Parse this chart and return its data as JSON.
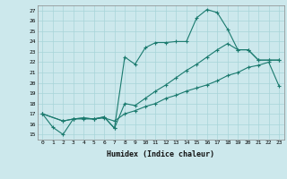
{
  "xlabel": "Humidex (Indice chaleur)",
  "ylabel": "",
  "bg_color": "#cce8ec",
  "grid_color": "#a8d4d8",
  "line_color": "#1a7a6e",
  "xlim": [
    -0.5,
    23.5
  ],
  "ylim": [
    14.5,
    27.5
  ],
  "xticks": [
    0,
    1,
    2,
    3,
    4,
    5,
    6,
    7,
    8,
    9,
    10,
    11,
    12,
    13,
    14,
    15,
    16,
    17,
    18,
    19,
    20,
    21,
    22,
    23
  ],
  "yticks": [
    15,
    16,
    17,
    18,
    19,
    20,
    21,
    22,
    23,
    24,
    25,
    26,
    27
  ],
  "series": [
    {
      "x": [
        0,
        1,
        2,
        3,
        4,
        5,
        6,
        7,
        8,
        9,
        10,
        11,
        12,
        13,
        14,
        15,
        16,
        17,
        18,
        19,
        20,
        21,
        22,
        23
      ],
      "y": [
        17,
        15.7,
        15.0,
        16.5,
        16.5,
        16.5,
        16.6,
        16.3,
        17.0,
        17.3,
        17.7,
        18.0,
        18.5,
        18.8,
        19.2,
        19.5,
        19.8,
        20.2,
        20.7,
        21.0,
        21.5,
        21.7,
        22.0,
        19.7
      ]
    },
    {
      "x": [
        0,
        2,
        3,
        4,
        5,
        6,
        7,
        8,
        9,
        10,
        11,
        12,
        13,
        14,
        15,
        16,
        17,
        18,
        19,
        20,
        21,
        22,
        23
      ],
      "y": [
        17,
        16.3,
        16.5,
        16.6,
        16.5,
        16.7,
        15.6,
        18.0,
        17.8,
        18.5,
        19.2,
        19.8,
        20.5,
        21.2,
        21.8,
        22.5,
        23.2,
        23.8,
        23.2,
        23.2,
        22.2,
        22.2,
        22.2
      ]
    },
    {
      "x": [
        0,
        2,
        3,
        4,
        5,
        6,
        7,
        8,
        9,
        10,
        11,
        12,
        13,
        14,
        15,
        16,
        17,
        18,
        19,
        20,
        21,
        22,
        23
      ],
      "y": [
        17,
        16.3,
        16.5,
        16.6,
        16.5,
        16.7,
        15.6,
        22.5,
        21.8,
        23.4,
        23.9,
        23.9,
        24.0,
        24.0,
        26.3,
        27.1,
        26.8,
        25.2,
        23.2,
        23.2,
        22.2,
        22.2,
        22.2
      ]
    }
  ]
}
